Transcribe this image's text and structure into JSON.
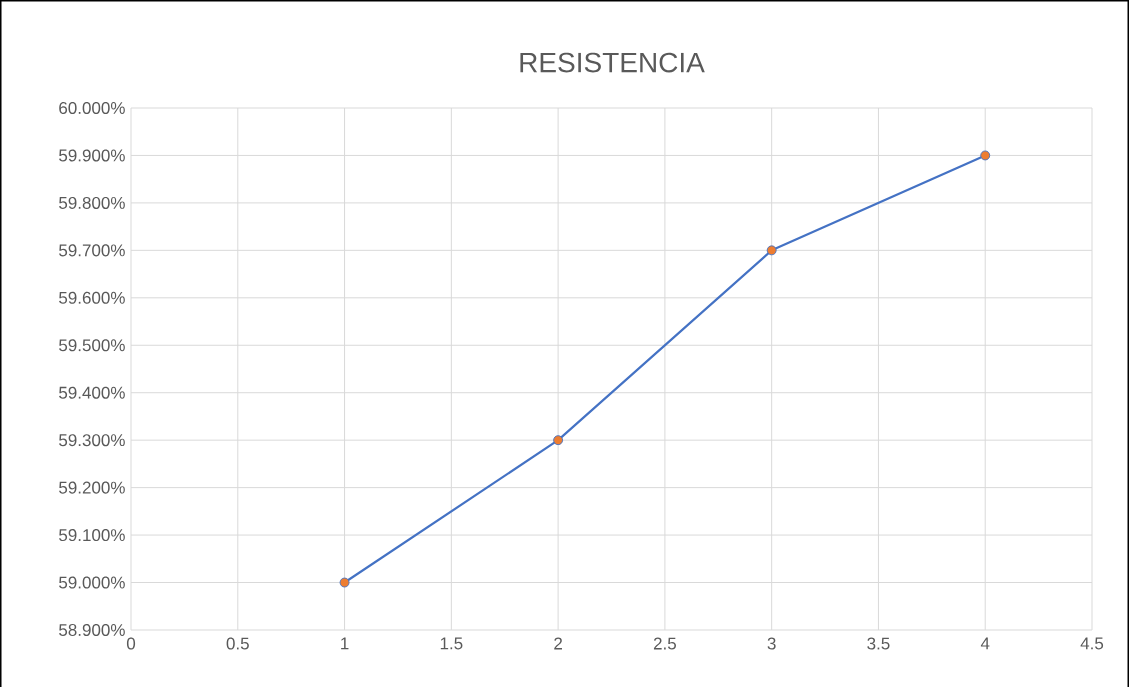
{
  "chart_data": {
    "type": "line",
    "title": "RESISTENCIA",
    "x": [
      1,
      2,
      3,
      4
    ],
    "series": [
      {
        "color": "#4472c4",
        "colors": [
          "#ed7d31",
          "#ed7d31",
          "#ed7d31",
          "#ed7d31"
        ],
        "values": [
          59.0,
          59.3,
          59.7,
          59.9
        ]
      }
    ],
    "xlim": [
      0,
      4.5
    ],
    "xticks": [
      0,
      0.5,
      1,
      1.5,
      2,
      2.5,
      3,
      3.5,
      4,
      4.5
    ],
    "ylim": [
      58.9,
      60.0
    ],
    "yticks": [
      {
        "value": 58.9,
        "label": "58.900%"
      },
      {
        "value": 59.0,
        "label": "59.000%"
      },
      {
        "value": 59.1,
        "label": "59.100%"
      },
      {
        "value": 59.2,
        "label": "59.200%"
      },
      {
        "value": 59.3,
        "label": "59.300%"
      },
      {
        "value": 59.4,
        "label": "59.400%"
      },
      {
        "value": 59.5,
        "label": "59.500%"
      },
      {
        "value": 59.6,
        "label": "59.600%"
      },
      {
        "value": 59.7,
        "label": "59.700%"
      },
      {
        "value": 59.8,
        "label": "59.800%"
      },
      {
        "value": 59.9,
        "label": "59.900%"
      },
      {
        "value": 60.0,
        "label": "60.000%"
      }
    ],
    "grid": true,
    "marker": "circle",
    "line_style": "solid"
  }
}
